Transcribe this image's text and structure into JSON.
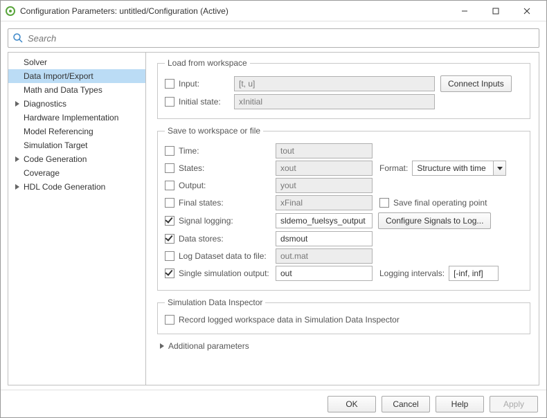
{
  "window": {
    "title": "Configuration Parameters: untitled/Configuration (Active)"
  },
  "search": {
    "placeholder": "Search"
  },
  "sidebar": {
    "items": [
      {
        "label": "Solver",
        "selected": false,
        "hasChildren": false
      },
      {
        "label": "Data Import/Export",
        "selected": true,
        "hasChildren": false
      },
      {
        "label": "Math and Data Types",
        "selected": false,
        "hasChildren": false
      },
      {
        "label": "Diagnostics",
        "selected": false,
        "hasChildren": true
      },
      {
        "label": "Hardware Implementation",
        "selected": false,
        "hasChildren": false
      },
      {
        "label": "Model Referencing",
        "selected": false,
        "hasChildren": false
      },
      {
        "label": "Simulation Target",
        "selected": false,
        "hasChildren": false
      },
      {
        "label": "Code Generation",
        "selected": false,
        "hasChildren": true
      },
      {
        "label": "Coverage",
        "selected": false,
        "hasChildren": false
      },
      {
        "label": "HDL Code Generation",
        "selected": false,
        "hasChildren": true
      }
    ]
  },
  "load_from_workspace": {
    "legend": "Load from workspace",
    "input": {
      "label": "Input:",
      "value": "[t, u]",
      "checked": false,
      "enabled": false
    },
    "initial_state": {
      "label": "Initial state:",
      "value": "xInitial",
      "checked": false,
      "enabled": false
    },
    "connect_inputs_btn": "Connect Inputs"
  },
  "save": {
    "legend": "Save to workspace or file",
    "time": {
      "label": "Time:",
      "value": "tout",
      "checked": false,
      "enabled": false
    },
    "states": {
      "label": "States:",
      "value": "xout",
      "checked": false,
      "enabled": false
    },
    "output": {
      "label": "Output:",
      "value": "yout",
      "checked": false,
      "enabled": false
    },
    "final": {
      "label": "Final states:",
      "value": "xFinal",
      "checked": false,
      "enabled": false
    },
    "signal_logging": {
      "label": "Signal logging:",
      "value": "sldemo_fuelsys_output",
      "checked": true,
      "enabled": true
    },
    "data_stores": {
      "label": "Data stores:",
      "value": "dsmout",
      "checked": true,
      "enabled": true
    },
    "log_dataset": {
      "label": "Log Dataset data to file:",
      "value": "out.mat",
      "checked": false,
      "enabled": false
    },
    "single_sim": {
      "label": "Single simulation output:",
      "value": "out",
      "checked": true,
      "enabled": true
    },
    "format_label": "Format:",
    "format_value": "Structure with time",
    "save_final_op": {
      "label": "Save final operating point",
      "checked": false
    },
    "configure_signals_btn": "Configure Signals to Log...",
    "logging_intervals_label": "Logging intervals:",
    "logging_intervals_value": "[-inf, inf]"
  },
  "sdi": {
    "legend": "Simulation Data Inspector",
    "record": {
      "label": "Record logged workspace data in Simulation Data Inspector",
      "checked": false
    }
  },
  "additional_parameters": "Additional parameters",
  "footer": {
    "ok": "OK",
    "cancel": "Cancel",
    "help": "Help",
    "apply": "Apply"
  },
  "colors": {
    "selection_bg": "#bbdcf5",
    "border": "#c0c0c0",
    "disabled_bg": "#ededed"
  }
}
